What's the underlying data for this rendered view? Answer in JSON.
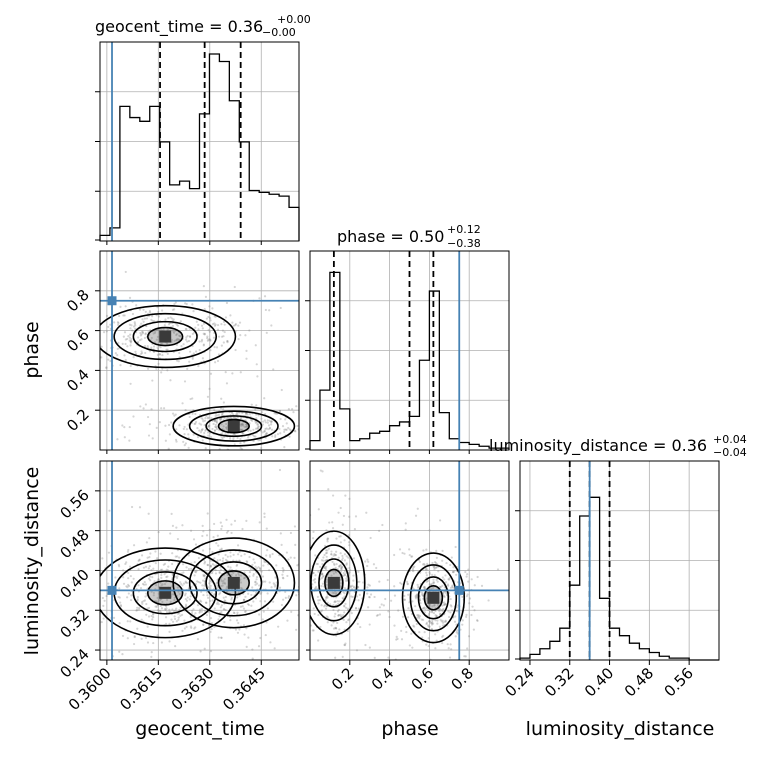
{
  "chart_data": {
    "type": "corner",
    "parameters": [
      "geocent_time",
      "phase",
      "luminosity_distance"
    ],
    "truth": {
      "geocent_time": 0.36015,
      "phase": 0.75,
      "luminosity_distance": 0.36
    },
    "truth_color": "#4682b4",
    "panels": {
      "geocent_time": {
        "title_main": "geocent_time = 0.36",
        "title_sup": "+0.00",
        "title_sub": "−0.00",
        "xlim": [
          0.3598,
          0.3656
        ],
        "quantiles": [
          0.36155,
          0.36285,
          0.3639
        ],
        "hist_x0": 0.3598,
        "hist_dx": 0.00029,
        "hist": [
          0.03,
          0.07,
          0.72,
          0.66,
          0.64,
          0.72,
          0.53,
          0.3,
          0.32,
          0.28,
          0.68,
          1.0,
          0.96,
          0.75,
          0.53,
          0.27,
          0.26,
          0.25,
          0.24,
          0.18
        ]
      },
      "phase": {
        "title_main": "phase = 0.50",
        "title_sup": "+0.12",
        "title_sub": "−0.38",
        "xlim": [
          0.0,
          1.0
        ],
        "quantiles": [
          0.12,
          0.5,
          0.62
        ],
        "hist_x0": 0.0,
        "hist_dx": 0.05,
        "hist": [
          0.05,
          0.32,
          0.95,
          0.22,
          0.05,
          0.06,
          0.09,
          0.1,
          0.13,
          0.15,
          0.18,
          0.48,
          0.85,
          0.2,
          0.06,
          0.04,
          0.03,
          0.02,
          0.01,
          0.01
        ]
      },
      "luminosity_distance": {
        "title_main": "luminosity_distance = 0.36",
        "title_sup": "+0.04",
        "title_sub": "−0.04",
        "xlim": [
          0.22,
          0.62
        ],
        "quantiles": [
          0.32,
          0.36,
          0.4
        ],
        "hist_x0": 0.22,
        "hist_dx": 0.02,
        "hist": [
          0.01,
          0.03,
          0.06,
          0.1,
          0.17,
          0.4,
          0.77,
          0.87,
          0.33,
          0.17,
          0.13,
          0.09,
          0.06,
          0.04,
          0.02,
          0.01,
          0.01,
          0.0,
          0.0,
          0.0
        ]
      }
    },
    "ranges": {
      "geocent_time": [
        0.3598,
        0.3656
      ],
      "phase": [
        0.0,
        1.0
      ],
      "luminosity_distance": [
        0.22,
        0.62
      ]
    },
    "ticks": {
      "geocent_time": [
        {
          "v": 0.36,
          "label": "0.3600"
        },
        {
          "v": 0.3615,
          "label": "0.3615"
        },
        {
          "v": 0.363,
          "label": "0.3630"
        },
        {
          "v": 0.3645,
          "label": "0.3645"
        }
      ],
      "phase": [
        {
          "v": 0.2,
          "label": "0.2"
        },
        {
          "v": 0.4,
          "label": "0.4"
        },
        {
          "v": 0.6,
          "label": "0.6"
        },
        {
          "v": 0.8,
          "label": "0.8"
        }
      ],
      "luminosity_distance": [
        {
          "v": 0.24,
          "label": "0.24"
        },
        {
          "v": 0.32,
          "label": "0.32"
        },
        {
          "v": 0.4,
          "label": "0.40"
        },
        {
          "v": 0.48,
          "label": "0.48"
        },
        {
          "v": 0.56,
          "label": "0.56"
        }
      ]
    },
    "modes": {
      "geocent_time_vs_phase": [
        {
          "x": 0.3617,
          "y": 0.57,
          "sx": 0.0007,
          "sy": 0.05
        },
        {
          "x": 0.3637,
          "y": 0.12,
          "sx": 0.0006,
          "sy": 0.03
        }
      ],
      "geocent_time_vs_luminosity_distance": [
        {
          "x": 0.3617,
          "y": 0.355,
          "sx": 0.0007,
          "sy": 0.03
        },
        {
          "x": 0.3637,
          "y": 0.375,
          "sx": 0.0006,
          "sy": 0.03
        }
      ],
      "phase_vs_luminosity_distance": [
        {
          "x": 0.12,
          "y": 0.375,
          "sx": 0.05,
          "sy": 0.035
        },
        {
          "x": 0.62,
          "y": 0.345,
          "sx": 0.05,
          "sy": 0.03
        }
      ]
    },
    "grid": true,
    "legend": "none"
  }
}
